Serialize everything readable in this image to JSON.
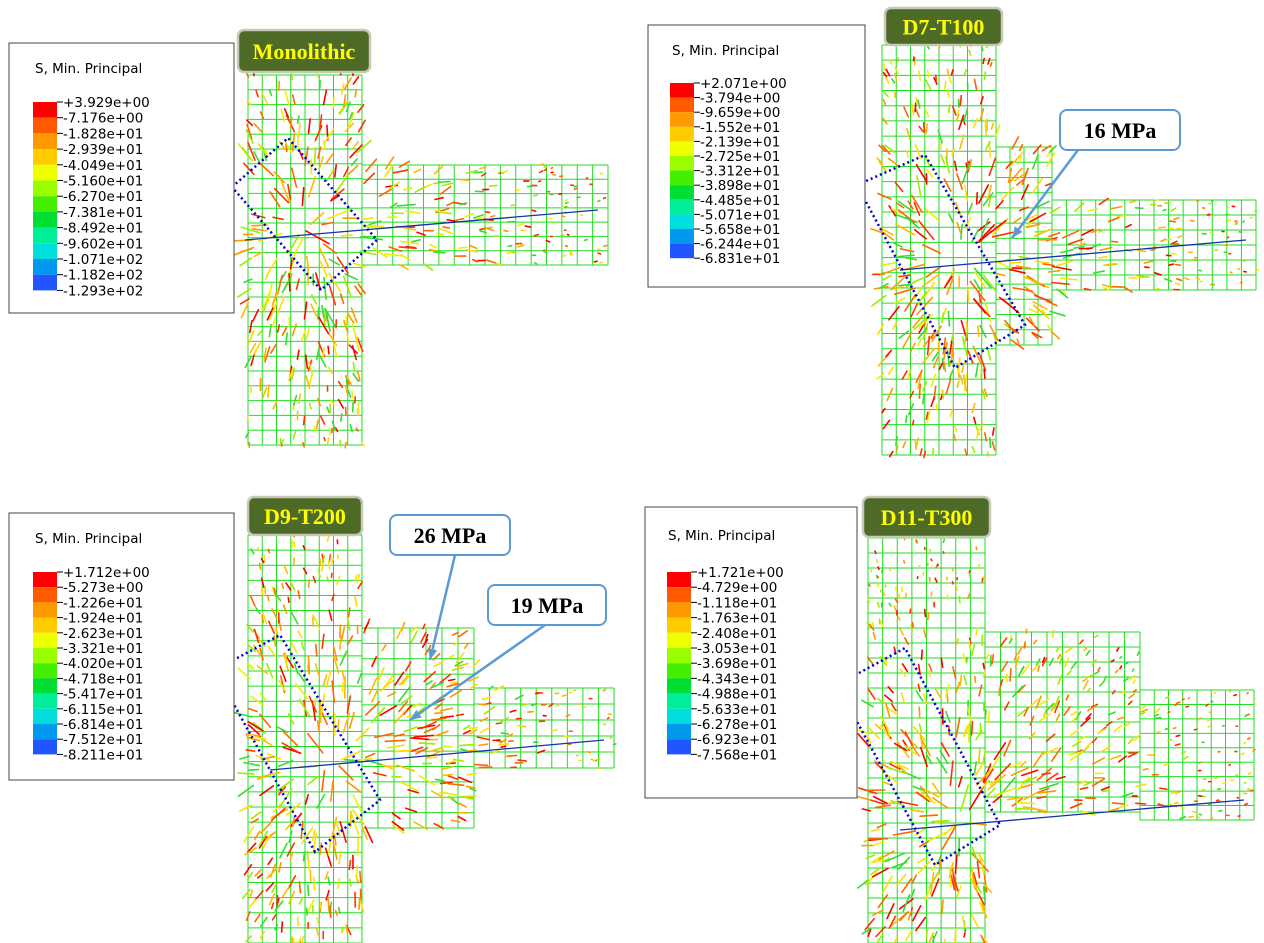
{
  "legend_colors": [
    "#ff0000",
    "#ff5a00",
    "#ff9900",
    "#ffcc00",
    "#eeff00",
    "#99ff00",
    "#44ee00",
    "#00dd33",
    "#00ee99",
    "#00dddd",
    "#0099ee",
    "#2255ff",
    "#0000ee"
  ],
  "panels": [
    {
      "label": "Monolithic",
      "legend": {
        "title": "S, Min. Principal",
        "labels": [
          "+3.929e+00",
          "-7.176e+00",
          "-1.828e+01",
          "-2.939e+01",
          "-4.049e+01",
          "-5.160e+01",
          "-6.270e+01",
          "-7.381e+01",
          "-8.492e+01",
          "-9.602e+01",
          "-1.071e+02",
          "-1.182e+02",
          "-1.293e+02"
        ]
      }
    },
    {
      "label": "D7-T100",
      "legend": {
        "title": "S, Min. Principal",
        "labels": [
          "+2.071e+00",
          "-3.794e+00",
          "-9.659e+00",
          "-1.552e+01",
          "-2.139e+01",
          "-2.725e+01",
          "-3.312e+01",
          "-3.898e+01",
          "-4.485e+01",
          "-5.071e+01",
          "-5.658e+01",
          "-6.244e+01",
          "-6.831e+01"
        ]
      },
      "callouts": [
        "16 MPa"
      ]
    },
    {
      "label": "D9-T200",
      "legend": {
        "title": "S, Min. Principal",
        "labels": [
          "+1.712e+00",
          "-5.273e+00",
          "-1.226e+01",
          "-1.924e+01",
          "-2.623e+01",
          "-3.321e+01",
          "-4.020e+01",
          "-4.718e+01",
          "-5.417e+01",
          "-6.115e+01",
          "-6.814e+01",
          "-7.512e+01",
          "-8.211e+01"
        ]
      },
      "callouts": [
        "26 MPa",
        "19 MPa"
      ]
    },
    {
      "label": "D11-T300",
      "legend": {
        "title": "S, Min. Principal",
        "labels": [
          "+1.721e+00",
          "-4.729e+00",
          "-1.118e+01",
          "-1.763e+01",
          "-2.408e+01",
          "-3.053e+01",
          "-3.698e+01",
          "-4.343e+01",
          "-4.988e+01",
          "-5.633e+01",
          "-6.278e+01",
          "-6.923e+01",
          "-7.568e+01"
        ]
      }
    }
  ]
}
